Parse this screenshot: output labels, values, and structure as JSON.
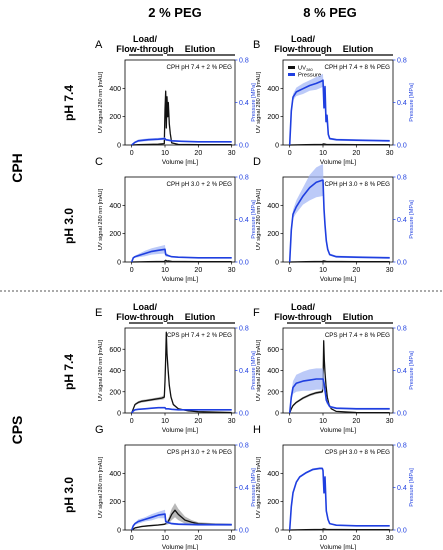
{
  "figure": {
    "col_headers": [
      "2 % PEG",
      "8 % PEG"
    ],
    "row_groups": [
      "CPH",
      "CPS"
    ],
    "ph_labels": [
      "pH 7.4",
      "pH 3.0",
      "pH 7.4",
      "pH 3.0"
    ],
    "phase_load": [
      "Load/",
      "Flow-through"
    ],
    "phase_elution": "Elution",
    "legend_uv_main": "UV",
    "legend_uv_sub": "280",
    "legend_pressure": "Pressure"
  },
  "colors": {
    "uv": "#111111",
    "pressure": "#1f3fe0",
    "pressure_band": "#9fb3f5",
    "uv_band": "#9a9a9a",
    "separator": "#555555"
  },
  "chart_data": [
    {
      "panel": "A",
      "type": "line",
      "title": "CPH pH 7.4 + 2 % PEG",
      "xlabel": "Volume [mL]",
      "ylabel": "UV signal 280 nm [mAU]",
      "y2label": "Pressure [MPa]",
      "xticks": [
        "0",
        "10",
        "20",
        "30"
      ],
      "yticks": [
        "0",
        "200",
        "400"
      ],
      "y2ticks": [
        "0.0",
        "0.4",
        "0.8"
      ],
      "xlim": [
        -2,
        31
      ],
      "ylim": [
        0,
        600
      ],
      "y2lim": [
        0,
        0.8
      ],
      "legend": false,
      "series": [
        {
          "name": "UV280",
          "axis": "left",
          "x": [
            0,
            2,
            8,
            9.8,
            10.0,
            10.2,
            10.4,
            10.6,
            10.8,
            11.0,
            11.3,
            11.6,
            12,
            14,
            20,
            30
          ],
          "y": [
            0,
            2,
            6,
            10,
            250,
            380,
            120,
            340,
            200,
            300,
            150,
            80,
            15,
            4,
            2,
            2
          ],
          "err": [
            0,
            0,
            0,
            0,
            30,
            20,
            20,
            30,
            20,
            30,
            20,
            10,
            5,
            0,
            0,
            0
          ]
        },
        {
          "name": "Pressure",
          "axis": "right",
          "x": [
            0,
            1,
            2,
            5,
            8,
            10,
            10.2,
            12,
            15,
            20,
            30
          ],
          "y": [
            0,
            0.025,
            0.04,
            0.05,
            0.055,
            0.06,
            0.05,
            0.04,
            0.035,
            0.03,
            0.03
          ],
          "err": [
            0,
            0.01,
            0.012,
            0.012,
            0.012,
            0.012,
            0.01,
            0.008,
            0.005,
            0.005,
            0.005
          ]
        }
      ]
    },
    {
      "panel": "B",
      "type": "line",
      "title": "CPH pH 7.4 + 8 % PEG",
      "xlabel": "Volume [mL]",
      "ylabel": "UV signal 280 nm [mAU]",
      "y2label": "Pressure [MPa]",
      "xticks": [
        "0",
        "10",
        "20",
        "30"
      ],
      "yticks": [
        "0",
        "200",
        "400"
      ],
      "y2ticks": [
        "0.0",
        "0.4",
        "0.8"
      ],
      "xlim": [
        -2,
        31
      ],
      "ylim": [
        0,
        600
      ],
      "y2lim": [
        0,
        0.8
      ],
      "legend": true,
      "series": [
        {
          "name": "UV280",
          "axis": "left",
          "x": [
            0,
            5,
            9.8,
            10.2,
            11,
            20,
            30
          ],
          "y": [
            0,
            2,
            4,
            8,
            4,
            2,
            2
          ],
          "err": [
            0,
            0,
            0,
            0,
            0,
            0,
            0
          ]
        },
        {
          "name": "Pressure",
          "axis": "right",
          "x": [
            0,
            0.5,
            1,
            2,
            4,
            6,
            8,
            9.5,
            10,
            10.3,
            10.6,
            10.9,
            11.2,
            11.6,
            12,
            14,
            20,
            30
          ],
          "y": [
            0,
            0.32,
            0.45,
            0.5,
            0.53,
            0.56,
            0.58,
            0.6,
            0.61,
            0.35,
            0.55,
            0.22,
            0.28,
            0.1,
            0.06,
            0.05,
            0.045,
            0.04
          ],
          "err": [
            0,
            0.02,
            0.03,
            0.04,
            0.05,
            0.05,
            0.06,
            0.06,
            0.06,
            0.05,
            0.04,
            0.03,
            0.02,
            0.02,
            0.01,
            0.01,
            0.01,
            0.01
          ]
        }
      ]
    },
    {
      "panel": "C",
      "type": "line",
      "title": "CPH pH 3.0 + 2 % PEG",
      "xlabel": "Volume [mL]",
      "ylabel": "UV signal 280 nm [mAU]",
      "y2label": "Pressure [MPa]",
      "xticks": [
        "0",
        "10",
        "20",
        "30"
      ],
      "yticks": [
        "0",
        "200",
        "400"
      ],
      "y2ticks": [
        "0.0",
        "0.4",
        "0.8"
      ],
      "xlim": [
        -2,
        31
      ],
      "ylim": [
        0,
        600
      ],
      "y2lim": [
        0,
        0.8
      ],
      "legend": false,
      "series": [
        {
          "name": "UV280",
          "axis": "left",
          "x": [
            0,
            5,
            9.8,
            10.2,
            10.6,
            11,
            12,
            20,
            30
          ],
          "y": [
            0,
            2,
            4,
            12,
            6,
            8,
            4,
            2,
            2
          ],
          "err": [
            0,
            0,
            0,
            0,
            0,
            0,
            0,
            0,
            0
          ]
        },
        {
          "name": "Pressure",
          "axis": "right",
          "x": [
            0,
            0.5,
            1,
            2,
            4,
            6,
            8,
            10,
            10.2,
            11,
            12,
            14,
            20,
            30
          ],
          "y": [
            0,
            0.04,
            0.05,
            0.06,
            0.08,
            0.1,
            0.11,
            0.12,
            0.07,
            0.06,
            0.05,
            0.045,
            0.04,
            0.04
          ],
          "err": [
            0,
            0.005,
            0.01,
            0.015,
            0.025,
            0.03,
            0.035,
            0.04,
            0.02,
            0.01,
            0.005,
            0.005,
            0.005,
            0.005
          ]
        }
      ]
    },
    {
      "panel": "D",
      "type": "line",
      "title": "CPH pH 3.0 + 8 % PEG",
      "xlabel": "Volume [mL]",
      "ylabel": "UV signal 280 nm [mAU]",
      "y2label": "Pressure [MPa]",
      "xticks": [
        "0",
        "10",
        "20",
        "30"
      ],
      "yticks": [
        "0",
        "200",
        "400"
      ],
      "y2ticks": [
        "0.0",
        "0.4",
        "0.8"
      ],
      "xlim": [
        -2,
        31
      ],
      "ylim": [
        0,
        600
      ],
      "y2lim": [
        0,
        0.8
      ],
      "legend": false,
      "series": [
        {
          "name": "UV280",
          "axis": "left",
          "x": [
            0,
            5,
            9.8,
            10.2,
            11,
            20,
            30
          ],
          "y": [
            0,
            2,
            4,
            8,
            4,
            2,
            2
          ],
          "err": [
            0,
            0,
            0,
            0,
            0,
            0,
            0
          ]
        },
        {
          "name": "Pressure",
          "axis": "right",
          "x": [
            0,
            0.5,
            1,
            2,
            4,
            6,
            8,
            9.8,
            10,
            10.3,
            10.6,
            11,
            11.4,
            12,
            14,
            20,
            30
          ],
          "y": [
            0,
            0.3,
            0.45,
            0.52,
            0.62,
            0.7,
            0.75,
            0.77,
            0.77,
            0.5,
            0.35,
            0.2,
            0.12,
            0.07,
            0.05,
            0.045,
            0.04
          ],
          "err": [
            0,
            0.02,
            0.04,
            0.06,
            0.08,
            0.12,
            0.14,
            0.15,
            0.15,
            0.06,
            0.05,
            0.04,
            0.02,
            0.01,
            0.01,
            0.01,
            0.01
          ]
        }
      ]
    },
    {
      "panel": "E",
      "type": "line",
      "title": "CPS pH 7.4 + 2 % PEG",
      "xlabel": "Volume [mL]",
      "ylabel": "UV signal 280 nm [mAU]",
      "y2label": "Pressure [MPa]",
      "xticks": [
        "0",
        "10",
        "20",
        "30"
      ],
      "yticks": [
        "0",
        "200",
        "400",
        "600"
      ],
      "y2ticks": [
        "0.0",
        "0.4",
        "0.8"
      ],
      "xlim": [
        -2,
        31
      ],
      "ylim": [
        0,
        800
      ],
      "y2lim": [
        0,
        0.8
      ],
      "legend": false,
      "series": [
        {
          "name": "UV280",
          "axis": "left",
          "x": [
            0,
            0.5,
            1,
            2,
            3,
            5,
            7,
            9,
            9.8,
            10.0,
            10.2,
            10.4,
            10.6,
            10.9,
            11.3,
            11.8,
            12.5,
            14,
            17,
            20,
            30
          ],
          "y": [
            0,
            40,
            80,
            100,
            110,
            120,
            130,
            140,
            150,
            300,
            520,
            760,
            560,
            420,
            260,
            150,
            80,
            40,
            20,
            12,
            5
          ],
          "err": [
            0,
            5,
            10,
            12,
            12,
            12,
            12,
            15,
            20,
            40,
            60,
            30,
            60,
            40,
            30,
            20,
            10,
            5,
            3,
            2,
            0
          ]
        },
        {
          "name": "Pressure",
          "axis": "right",
          "x": [
            0,
            0.5,
            1,
            2,
            4,
            6,
            8,
            10,
            10.2,
            11,
            12,
            14,
            20,
            30
          ],
          "y": [
            0,
            0.02,
            0.03,
            0.035,
            0.04,
            0.045,
            0.05,
            0.05,
            0.04,
            0.04,
            0.035,
            0.03,
            0.03,
            0.03
          ],
          "err": [
            0,
            0.005,
            0.005,
            0.005,
            0.005,
            0.005,
            0.005,
            0.005,
            0.005,
            0.005,
            0.005,
            0.005,
            0.005,
            0.005
          ]
        }
      ]
    },
    {
      "panel": "F",
      "type": "line",
      "title": "CPS pH 7.4 + 8 % PEG",
      "xlabel": "Volume [mL]",
      "ylabel": "UV signal 280 nm [mAU]",
      "y2label": "Pressure [MPa]",
      "xticks": [
        "0",
        "10",
        "20",
        "30"
      ],
      "yticks": [
        "0",
        "200",
        "400",
        "600"
      ],
      "y2ticks": [
        "0.0",
        "0.4",
        "0.8"
      ],
      "xlim": [
        -2,
        31
      ],
      "ylim": [
        0,
        800
      ],
      "y2lim": [
        0,
        0.8
      ],
      "legend": false,
      "series": [
        {
          "name": "UV280",
          "axis": "left",
          "x": [
            0,
            0.5,
            1,
            2,
            4,
            6,
            8,
            9.8,
            10.0,
            10.2,
            10.4,
            10.6,
            10.9,
            11.3,
            11.8,
            12.5,
            14,
            20,
            30
          ],
          "y": [
            0,
            40,
            70,
            100,
            140,
            170,
            190,
            200,
            250,
            680,
            500,
            380,
            260,
            150,
            80,
            40,
            15,
            5,
            3
          ],
          "err": [
            0,
            5,
            10,
            10,
            12,
            12,
            12,
            12,
            30,
            40,
            40,
            30,
            20,
            15,
            10,
            5,
            2,
            0,
            0
          ]
        },
        {
          "name": "Pressure",
          "axis": "right",
          "x": [
            0,
            0.5,
            1,
            2,
            4,
            6,
            8,
            9.8,
            10,
            10.3,
            10.6,
            11,
            12,
            14,
            20,
            30
          ],
          "y": [
            0,
            0.15,
            0.24,
            0.28,
            0.3,
            0.31,
            0.32,
            0.32,
            0.32,
            0.28,
            0.22,
            0.12,
            0.06,
            0.045,
            0.04,
            0.04
          ],
          "err": [
            0,
            0.04,
            0.06,
            0.08,
            0.09,
            0.1,
            0.1,
            0.1,
            0.1,
            0.08,
            0.05,
            0.03,
            0.01,
            0.01,
            0.01,
            0.01
          ]
        }
      ]
    },
    {
      "panel": "G",
      "type": "line",
      "title": "CPS pH 3.0 + 2 % PEG",
      "xlabel": "Volume [mL]",
      "ylabel": "UV signal 280 nm [mAU]",
      "y2label": "Pressure [MPa]",
      "xticks": [
        "0",
        "10",
        "20",
        "30"
      ],
      "yticks": [
        "0",
        "200",
        "400"
      ],
      "y2ticks": [
        "0.0",
        "0.4",
        "0.8"
      ],
      "xlim": [
        -2,
        31
      ],
      "ylim": [
        0,
        600
      ],
      "y2lim": [
        0,
        0.8
      ],
      "legend": false,
      "series": [
        {
          "name": "UV280",
          "axis": "left",
          "x": [
            0,
            1,
            3,
            5,
            8,
            9.8,
            10.2,
            11,
            12,
            13,
            14,
            16,
            18,
            20,
            25,
            30
          ],
          "y": [
            0,
            15,
            25,
            30,
            35,
            40,
            45,
            60,
            110,
            140,
            110,
            70,
            55,
            45,
            40,
            38
          ],
          "err": [
            0,
            5,
            5,
            5,
            5,
            5,
            10,
            20,
            40,
            50,
            40,
            25,
            15,
            10,
            8,
            8
          ]
        },
        {
          "name": "Pressure",
          "axis": "right",
          "x": [
            0,
            0.5,
            1,
            2,
            4,
            6,
            8,
            10,
            10.2,
            11,
            12,
            14,
            20,
            30
          ],
          "y": [
            0,
            0.04,
            0.06,
            0.08,
            0.1,
            0.12,
            0.14,
            0.15,
            0.08,
            0.07,
            0.06,
            0.055,
            0.05,
            0.05
          ],
          "err": [
            0,
            0.01,
            0.01,
            0.02,
            0.02,
            0.03,
            0.03,
            0.04,
            0.02,
            0.01,
            0.01,
            0.01,
            0.01,
            0.01
          ]
        }
      ]
    },
    {
      "panel": "H",
      "type": "line",
      "title": "CPS pH 3.0 + 8 % PEG",
      "xlabel": "Volume [mL]",
      "ylabel": "UV signal 280 nm [mAU]",
      "y2label": "Pressure [MPa]",
      "xticks": [
        "0",
        "10",
        "20",
        "30"
      ],
      "yticks": [
        "0",
        "200",
        "400"
      ],
      "y2ticks": [
        "0.0",
        "0.4",
        "0.8"
      ],
      "xlim": [
        -2,
        31
      ],
      "ylim": [
        0,
        600
      ],
      "y2lim": [
        0,
        0.8
      ],
      "legend": false,
      "series": [
        {
          "name": "UV280",
          "axis": "left",
          "x": [
            0,
            5,
            9.8,
            10.2,
            11,
            20,
            30
          ],
          "y": [
            0,
            2,
            4,
            8,
            4,
            2,
            2
          ],
          "err": [
            0,
            0,
            0,
            0,
            0,
            0,
            0
          ]
        },
        {
          "name": "Pressure",
          "axis": "right",
          "x": [
            0,
            0.5,
            1,
            2,
            3,
            5,
            7,
            9,
            9.8,
            10,
            10.3,
            10.6,
            11,
            11.5,
            12,
            14,
            20,
            30
          ],
          "y": [
            0,
            0.22,
            0.35,
            0.45,
            0.5,
            0.54,
            0.57,
            0.58,
            0.58,
            0.56,
            0.35,
            0.5,
            0.18,
            0.1,
            0.06,
            0.045,
            0.04,
            0.04
          ],
          "err": [
            0,
            0.01,
            0.01,
            0.01,
            0.01,
            0.01,
            0.01,
            0.01,
            0.01,
            0.01,
            0.02,
            0.02,
            0.01,
            0.01,
            0.005,
            0.005,
            0.005,
            0.005
          ]
        }
      ]
    }
  ]
}
